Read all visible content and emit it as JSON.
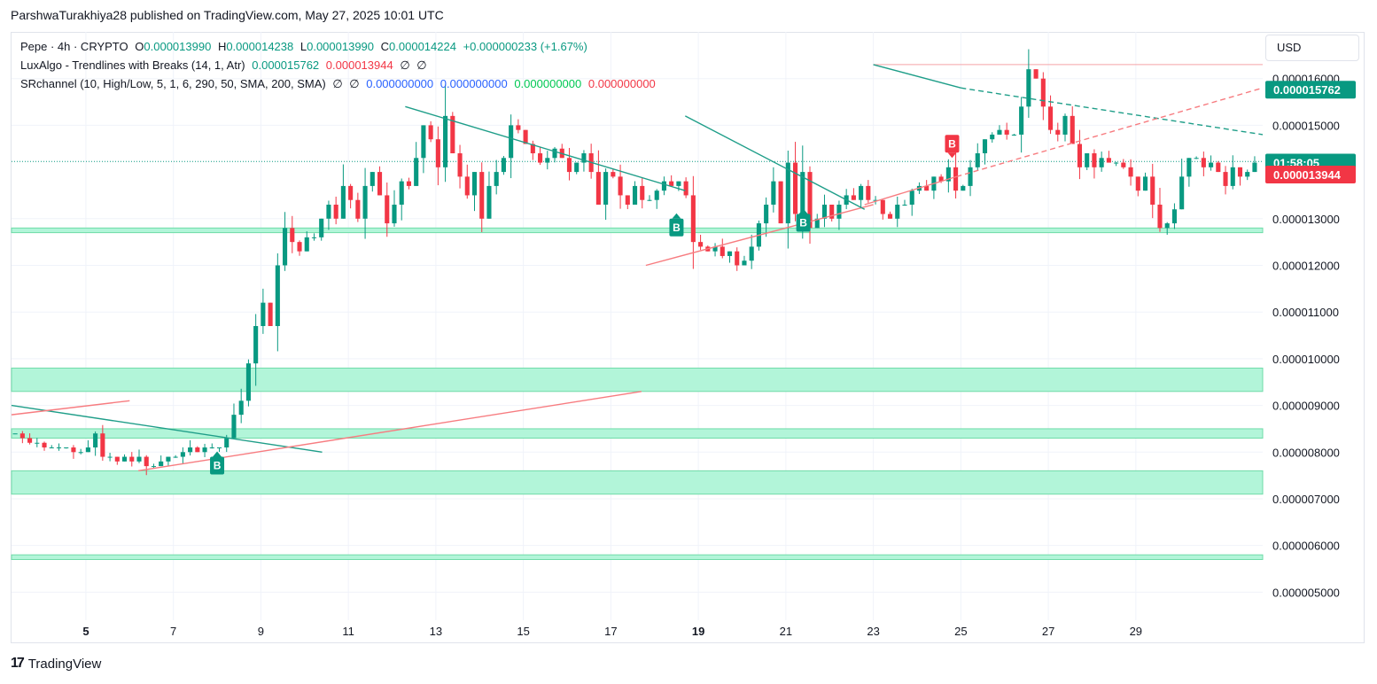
{
  "header": {
    "published": "ParshwaTurakhiya28 published on TradingView.com, May 27, 2025 10:01 UTC"
  },
  "legend": {
    "symbol": "Pepe · 4h · CRYPTO",
    "o_label": "O",
    "o_value": "0.000013990",
    "h_label": "H",
    "h_value": "0.000014238",
    "l_label": "L",
    "l_value": "0.000013990",
    "c_label": "C",
    "c_value": "0.000014224",
    "change": "+0.000000233 (+1.67%)",
    "ind1_name": "LuxAlgo - Trendlines with Breaks (14, 1, Atr)",
    "ind1_v1": "0.000015762",
    "ind1_v2": "0.000013944",
    "ind1_v3": "∅",
    "ind1_v4": "∅",
    "ind2_name": "SRchannel (10, High/Low, 5, 1, 6, 290, 50, SMA, 200, SMA)",
    "ind2_v1": "∅",
    "ind2_v2": "∅",
    "ind2_v3": "0.000000000",
    "ind2_v4": "0.000000000",
    "ind2_v5": "0.000000000",
    "ind2_v6": "0.000000000"
  },
  "currency": "USD",
  "footer": {
    "brand": "TradingView",
    "logo_glyph": "17"
  },
  "colors": {
    "up": "#089981",
    "down": "#f23645",
    "zone": "#b2f5d9",
    "zone_border": "#6fdba8",
    "trend_down": "#1f9e89",
    "trend_up": "#f77c80",
    "grid": "#f0f3fa"
  },
  "chart_data": {
    "type": "candlestick",
    "title": "Pepe · 4h · CRYPTO",
    "ylim": [
      4.4e-06,
      1.7e-05
    ],
    "y_ticks": [
      {
        "value": 5e-06,
        "label": "0.000005000"
      },
      {
        "value": 6e-06,
        "label": "0.000006000"
      },
      {
        "value": 7e-06,
        "label": "0.000007000"
      },
      {
        "value": 8e-06,
        "label": "0.000008000"
      },
      {
        "value": 9e-06,
        "label": "0.000009000"
      },
      {
        "value": 1e-05,
        "label": "0.000010000"
      },
      {
        "value": 1.1e-05,
        "label": "0.000011000"
      },
      {
        "value": 1.2e-05,
        "label": "0.000012000"
      },
      {
        "value": 1.3e-05,
        "label": "0.000013000"
      },
      {
        "value": 1.5e-05,
        "label": "0.000015000"
      },
      {
        "value": 1.6e-05,
        "label": "0.000016000"
      }
    ],
    "x_ticks": [
      {
        "day": 5,
        "label": "5",
        "bold": true
      },
      {
        "day": 7,
        "label": "7",
        "bold": false
      },
      {
        "day": 9,
        "label": "9",
        "bold": false
      },
      {
        "day": 11,
        "label": "11",
        "bold": false
      },
      {
        "day": 13,
        "label": "13",
        "bold": false
      },
      {
        "day": 15,
        "label": "15",
        "bold": false
      },
      {
        "day": 17,
        "label": "17",
        "bold": false
      },
      {
        "day": 19,
        "label": "19",
        "bold": true
      },
      {
        "day": 21,
        "label": "21",
        "bold": false
      },
      {
        "day": 23,
        "label": "23",
        "bold": false
      },
      {
        "day": 25,
        "label": "25",
        "bold": false
      },
      {
        "day": 27,
        "label": "27",
        "bold": false
      },
      {
        "day": 29,
        "label": "29",
        "bold": false
      }
    ],
    "x_domain_days": [
      3.3,
      31.9
    ],
    "close_series": [
      8.4e-06,
      8.3e-06,
      8.2e-06,
      8.2e-06,
      8.1e-06,
      8.1e-06,
      8.1e-06,
      8.1e-06,
      8e-06,
      8e-06,
      8.1e-06,
      8.4e-06,
      7.9e-06,
      7.9e-06,
      7.8e-06,
      7.9e-06,
      7.8e-06,
      7.9e-06,
      7.7e-06,
      7.7e-06,
      7.8e-06,
      7.9e-06,
      7.9e-06,
      8e-06,
      8.1e-06,
      8e-06,
      8.1e-06,
      8.1e-06,
      8.1e-06,
      8.3e-06,
      8.8e-06,
      9.1e-06,
      9.9e-06,
      1.07e-05,
      1.12e-05,
      1.07e-05,
      1.2e-05,
      1.28e-05,
      1.25e-05,
      1.23e-05,
      1.26e-05,
      1.26e-05,
      1.3e-05,
      1.33e-05,
      1.3e-05,
      1.37e-05,
      1.34e-05,
      1.3e-05,
      1.37e-05,
      1.4e-05,
      1.35e-05,
      1.29e-05,
      1.33e-05,
      1.38e-05,
      1.37e-05,
      1.43e-05,
      1.5e-05,
      1.47e-05,
      1.41e-05,
      1.52e-05,
      1.44e-05,
      1.39e-05,
      1.35e-05,
      1.4e-05,
      1.3e-05,
      1.37e-05,
      1.4e-05,
      1.43e-05,
      1.5e-05,
      1.49e-05,
      1.46e-05,
      1.44e-05,
      1.42e-05,
      1.43e-05,
      1.45e-05,
      1.43e-05,
      1.4e-05,
      1.42e-05,
      1.44e-05,
      1.4e-05,
      1.33e-05,
      1.4e-05,
      1.39e-05,
      1.35e-05,
      1.33e-05,
      1.37e-05,
      1.34e-05,
      1.34e-05,
      1.36e-05,
      1.38e-05,
      1.37e-05,
      1.38e-05,
      1.35e-05,
      1.25e-05,
      1.24e-05,
      1.23e-05,
      1.24e-05,
      1.22e-05,
      1.23e-05,
      1.2e-05,
      1.21e-05,
      1.24e-05,
      1.29e-05,
      1.33e-05,
      1.38e-05,
      1.29e-05,
      1.42e-05,
      1.31e-05,
      1.4e-05,
      1.28e-05,
      1.3e-05,
      1.33e-05,
      1.3e-05,
      1.33e-05,
      1.35e-05,
      1.34e-05,
      1.37e-05,
      1.34e-05,
      1.34e-05,
      1.31e-05,
      1.3e-05,
      1.33e-05,
      1.33e-05,
      1.36e-05,
      1.37e-05,
      1.36e-05,
      1.39e-05,
      1.38e-05,
      1.41e-05,
      1.36e-05,
      1.37e-05,
      1.41e-05,
      1.44e-05,
      1.47e-05,
      1.48e-05,
      1.49e-05,
      1.48e-05,
      1.48e-05,
      1.54e-05,
      1.62e-05,
      1.6e-05,
      1.54e-05,
      1.49e-05,
      1.48e-05,
      1.52e-05,
      1.46e-05,
      1.41e-05,
      1.44e-05,
      1.41e-05,
      1.43e-05,
      1.42e-05,
      1.42e-05,
      1.41e-05,
      1.39e-05,
      1.36e-05,
      1.39e-05,
      1.33e-05,
      1.28e-05,
      1.29e-05,
      1.32e-05,
      1.39e-05,
      1.43e-05,
      1.43e-05,
      1.41e-05,
      1.42e-05,
      1.4e-05,
      1.37e-05,
      1.41e-05,
      1.39e-05,
      1.4e-05,
      1.42e-05
    ],
    "series_start_day": 3.3,
    "candles_per_day": 6,
    "trendlines": [
      {
        "kind": "down",
        "from": [
          3.3,
          9e-06
        ],
        "to": [
          10.4,
          8e-06
        ]
      },
      {
        "kind": "up",
        "from": [
          3.3,
          8.8e-06
        ],
        "to": [
          6.0,
          9.1e-06
        ]
      },
      {
        "kind": "up",
        "from": [
          6.2,
          7.6e-06
        ],
        "to": [
          17.7,
          9.3e-06
        ]
      },
      {
        "kind": "down",
        "from": [
          12.3,
          1.54e-05
        ],
        "to": [
          18.7,
          1.36e-05
        ]
      },
      {
        "kind": "up",
        "from": [
          17.8,
          1.2e-05
        ],
        "to": [
          23.0,
          1.33e-05
        ]
      },
      {
        "kind": "down",
        "from": [
          18.7,
          1.52e-05
        ],
        "to": [
          22.8,
          1.32e-05
        ]
      },
      {
        "kind": "down",
        "from": [
          23.0,
          1.63e-05
        ],
        "to": [
          25.0,
          1.58e-05
        ]
      },
      {
        "kind": "down_dashed",
        "from": [
          25.0,
          1.58e-05
        ],
        "to": [
          31.9,
          1.48e-05
        ]
      },
      {
        "kind": "up",
        "from": [
          22.8,
          1.33e-05
        ],
        "to": [
          24.9,
          1.39e-05
        ]
      },
      {
        "kind": "up_dashed",
        "from": [
          24.9,
          1.39e-05
        ],
        "to": [
          31.9,
          1.58e-05
        ]
      }
    ],
    "sr_zones": [
      {
        "from": 1.27e-05,
        "to": 1.28e-05
      },
      {
        "from": 9.3e-06,
        "to": 9.8e-06
      },
      {
        "from": 8.3e-06,
        "to": 8.5e-06
      },
      {
        "from": 7.1e-06,
        "to": 7.6e-06
      },
      {
        "from": 5.7e-06,
        "to": 5.8e-06
      }
    ],
    "break_markers": [
      {
        "label": "B",
        "kind": "buy",
        "day": 8.0,
        "value": 7.9e-06
      },
      {
        "label": "B",
        "kind": "buy",
        "day": 18.5,
        "value": 1.3e-05
      },
      {
        "label": "B",
        "kind": "buy",
        "day": 21.4,
        "value": 1.31e-05
      },
      {
        "label": "B",
        "kind": "sell",
        "day": 24.8,
        "value": 1.43e-05
      }
    ],
    "price_tags": [
      {
        "label": "0.000015762",
        "value": 1.5762e-05,
        "color": "#089981"
      },
      {
        "label": "01:58:05",
        "value": 1.42e-05,
        "color": "#089981"
      },
      {
        "label": "0.000013944",
        "value": 1.3944e-05,
        "color": "#f23645"
      }
    ],
    "resistance_line": 1.63e-05,
    "current_price": 1.4224e-05
  }
}
